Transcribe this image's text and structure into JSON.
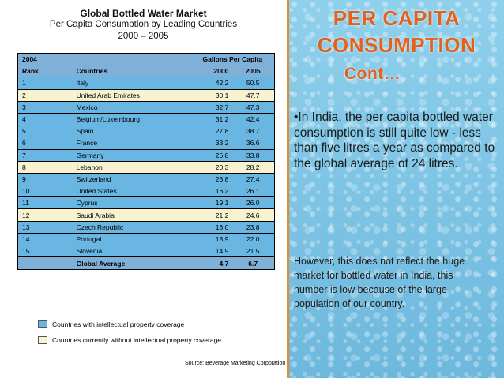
{
  "table": {
    "title": "Global Bottled Water Market",
    "subtitle": "Per Capita Consumption by Leading Countries",
    "years": "2000 – 2005",
    "header_top": {
      "year": "2004",
      "unit": "Gallons Per Capita"
    },
    "header": {
      "rank": "Rank",
      "country": "Countries",
      "y2000": "2000",
      "y2005": "2005"
    },
    "rows": [
      {
        "rank": "1",
        "country": "Italy",
        "y2000": "42.2",
        "y2005": "50.5",
        "coverage": "blue"
      },
      {
        "rank": "2",
        "country": "United Arab Emirates",
        "y2000": "30.1",
        "y2005": "47.7",
        "coverage": "cream"
      },
      {
        "rank": "3",
        "country": "Mexico",
        "y2000": "32.7",
        "y2005": "47.3",
        "coverage": "blue"
      },
      {
        "rank": "4",
        "country": "Belgium/Luxembourg",
        "y2000": "31.2",
        "y2005": "42.4",
        "coverage": "blue"
      },
      {
        "rank": "5",
        "country": "Spain",
        "y2000": "27.8",
        "y2005": "38.7",
        "coverage": "blue"
      },
      {
        "rank": "6",
        "country": "France",
        "y2000": "33.2",
        "y2005": "36.6",
        "coverage": "blue"
      },
      {
        "rank": "7",
        "country": "Germany",
        "y2000": "26.8",
        "y2005": "33.8",
        "coverage": "blue"
      },
      {
        "rank": "8",
        "country": "Lebanon",
        "y2000": "20.3",
        "y2005": "28.2",
        "coverage": "cream"
      },
      {
        "rank": "9",
        "country": "Switzerland",
        "y2000": "23.8",
        "y2005": "27.4",
        "coverage": "blue"
      },
      {
        "rank": "10",
        "country": "United States",
        "y2000": "16.2",
        "y2005": "26.1",
        "coverage": "blue"
      },
      {
        "rank": "11",
        "country": "Cyprus",
        "y2000": "19.1",
        "y2005": "26.0",
        "coverage": "blue"
      },
      {
        "rank": "12",
        "country": "Saudi Arabia",
        "y2000": "21.2",
        "y2005": "24.6",
        "coverage": "cream"
      },
      {
        "rank": "13",
        "country": "Czech Republic",
        "y2000": "18.0",
        "y2005": "23.8",
        "coverage": "blue"
      },
      {
        "rank": "14",
        "country": "Portugal",
        "y2000": "18.9",
        "y2005": "22.0",
        "coverage": "blue"
      },
      {
        "rank": "15",
        "country": "Slovenia",
        "y2000": "14.9",
        "y2005": "21.5",
        "coverage": "blue"
      }
    ],
    "footer": {
      "label": "Global Average",
      "y2000": "4.7",
      "y2005": "6.7"
    },
    "legend": [
      {
        "label": "Countries with intellectual property coverage",
        "color": "#69b6e2"
      },
      {
        "label": "Countries currently without intellectual property coverage",
        "color": "#f7f2cf"
      }
    ],
    "source": "Source: Beverage Marketing Corporation"
  },
  "slide": {
    "title_line1": "PER CAPITA",
    "title_line2": "CONSUMPTION",
    "title_line3": "Cont…",
    "paragraph1": "•In India, the per capita bottled water consumption is still quite low - less than five litres a year as compared to the global average of 24 litres.",
    "paragraph2": "However, this does not reflect the huge market for bottled water in India, this number is low  because of the large population of our country."
  },
  "colors": {
    "title": "#e2611d",
    "accent_border": "#e58a2e"
  }
}
